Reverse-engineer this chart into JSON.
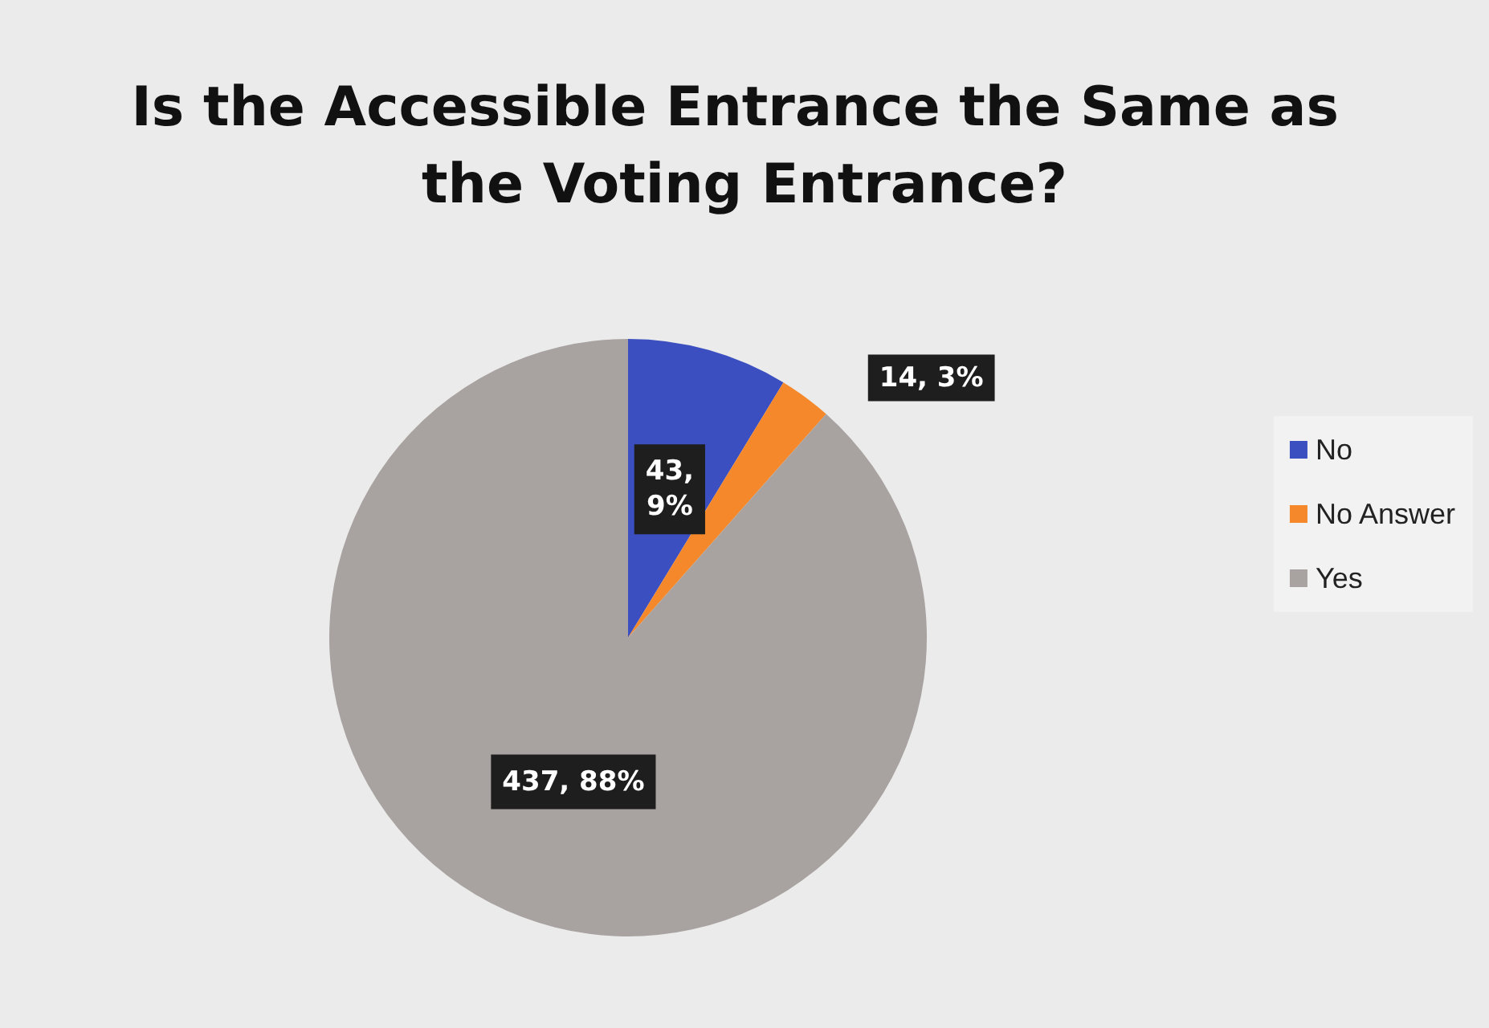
{
  "chart_data": {
    "type": "pie",
    "title": "Is the Accessible Entrance the Same as the Voting Entrance?",
    "categories": [
      "No",
      "No Answer",
      "Yes"
    ],
    "values": [
      43,
      14,
      437
    ],
    "colors": [
      "#3b4fc1",
      "#f5882a",
      "#a8a3a0"
    ],
    "value_labels": [
      "43, 9%",
      "14, 3%",
      "437, 88%"
    ],
    "legend": "right"
  }
}
